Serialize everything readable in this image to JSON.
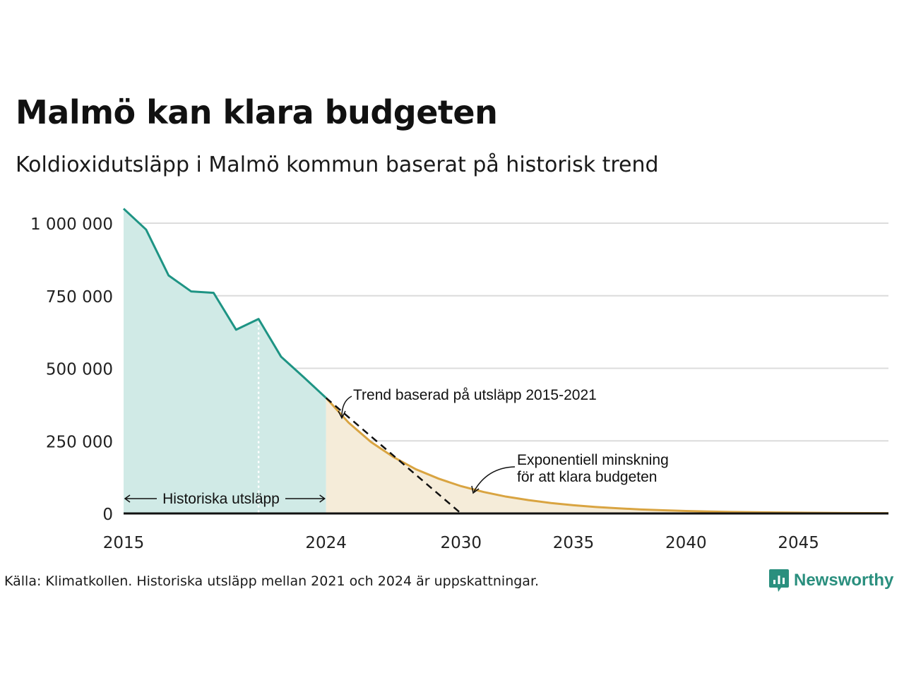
{
  "header": {
    "title": "Malmö kan klara budgeten",
    "subtitle": "Koldioxidutsläpp i Malmö kommun baserat på historisk trend"
  },
  "chart_data": {
    "type": "area",
    "title": "Malmö kan klara budgeten",
    "subtitle": "Koldioxidutsläpp i Malmö kommun baserat på historisk trend",
    "xlabel": "",
    "ylabel": "",
    "xlim": [
      2015,
      2049
    ],
    "ylim": [
      0,
      1000000
    ],
    "x_ticks": [
      2015,
      2024,
      2030,
      2035,
      2040,
      2045
    ],
    "x_tick_labels": [
      "2015",
      "2024",
      "2030",
      "2035",
      "2040",
      "2045"
    ],
    "y_ticks": [
      0,
      250000,
      500000,
      750000,
      1000000
    ],
    "y_tick_labels": [
      "0",
      "250 000",
      "500 000",
      "750 000",
      "1 000 000"
    ],
    "grid": true,
    "estimate_start_year": 2021,
    "series": [
      {
        "name": "Historiska utsläpp",
        "color": "#1e9484",
        "fill": "#d0eae6",
        "x": [
          2015,
          2016,
          2017,
          2018,
          2019,
          2020,
          2021,
          2022,
          2023,
          2024
        ],
        "values": [
          1050000,
          978000,
          820000,
          765000,
          760000,
          633000,
          670000,
          540000,
          470000,
          398000
        ]
      },
      {
        "name": "Exponentiell minskning för att klara budgeten",
        "color": "#d9a441",
        "fill": "#f5ecd9",
        "x": [
          2024,
          2025,
          2026,
          2027,
          2028,
          2029,
          2030,
          2031,
          2032,
          2033,
          2034,
          2035,
          2036,
          2037,
          2038,
          2039,
          2040,
          2041,
          2042,
          2043,
          2044,
          2045,
          2046,
          2047,
          2048,
          2049
        ],
        "values": [
          398000,
          313000,
          246000,
          194000,
          152000,
          120000,
          94000,
          74000,
          58000,
          46000,
          36000,
          28400,
          22300,
          17600,
          13800,
          10900,
          8500,
          6700,
          5300,
          4200,
          3300,
          2600,
          2000,
          1600,
          1200,
          1000
        ]
      },
      {
        "name": "Trend baserad på utsläpp 2015-2021",
        "color": "#111111",
        "dashed": true,
        "x": [
          2024,
          2030,
          2049
        ],
        "values": [
          398000,
          0,
          0
        ]
      }
    ],
    "annotations": [
      {
        "text": "Trend baserad på utsläpp 2015-2021"
      },
      {
        "text": "Exponentiell minskning"
      },
      {
        "text": "för att klara budgeten"
      },
      {
        "text": "Historiska utsläpp"
      }
    ]
  },
  "footer": {
    "source": "Källa: Klimatkollen. Historiska utsläpp mellan 2021 och 2024 är uppskattningar.",
    "brand": "Newsworthy",
    "brand_color": "#2a8f7e",
    "logo_icon": "bar-chart-icon"
  }
}
